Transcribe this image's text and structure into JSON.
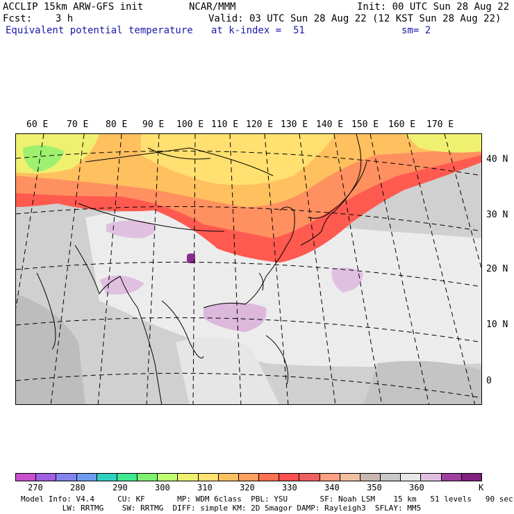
{
  "header": {
    "line1_left": "ACCLIP 15km ARW-GFS init",
    "line1_center": "NCAR/MMM",
    "line1_right": "Init: 00 UTC Sun 28 Aug 22",
    "line2_left": "Fcst:    3 h",
    "line2_right": "Valid: 03 UTC Sun 28 Aug 22 (12 KST Sun 28 Aug 22)",
    "line3_left": "Equivalent potential temperature",
    "line3_center": "at k-index =  51",
    "line3_right": "sm= 2"
  },
  "lon_labels": [
    "60 E",
    "70 E",
    "80 E",
    "90 E",
    "100 E",
    "110 E",
    "120 E",
    "130 E",
    "140 E",
    "150 E",
    "160 E",
    "170 E"
  ],
  "lat_labels": [
    "40 N",
    "30 N",
    "20 N",
    "10 N",
    "0"
  ],
  "colorbar": {
    "colors": [
      "#c84fd0",
      "#a060e0",
      "#8484f0",
      "#6c9cf0",
      "#30d0c0",
      "#40e890",
      "#80f070",
      "#c0ff70",
      "#f0f070",
      "#ffe070",
      "#ffc060",
      "#ffa060",
      "#ff7050",
      "#ff5050",
      "#f06060",
      "#ffa080",
      "#f0c0a0",
      "#c8b8b0",
      "#c8c8c8",
      "#e8e8e8",
      "#e0c0e0",
      "#a040a0",
      "#802080"
    ],
    "labels": [
      "270",
      "280",
      "290",
      "300",
      "310",
      "320",
      "330",
      "340",
      "350",
      "360"
    ],
    "unit": "K"
  },
  "footer": {
    "line1": "Model Info: V4.4     CU: KF       MP: WDM 6class  PBL: YSU       SF: Noah LSM    15 km   51 levels   90 sec",
    "line2": "         LW: RRTMG    SW: RRTMG  DIFF: simple KM: 2D Smagor DAMP: Rayleigh3  SFLAY: MM5"
  }
}
